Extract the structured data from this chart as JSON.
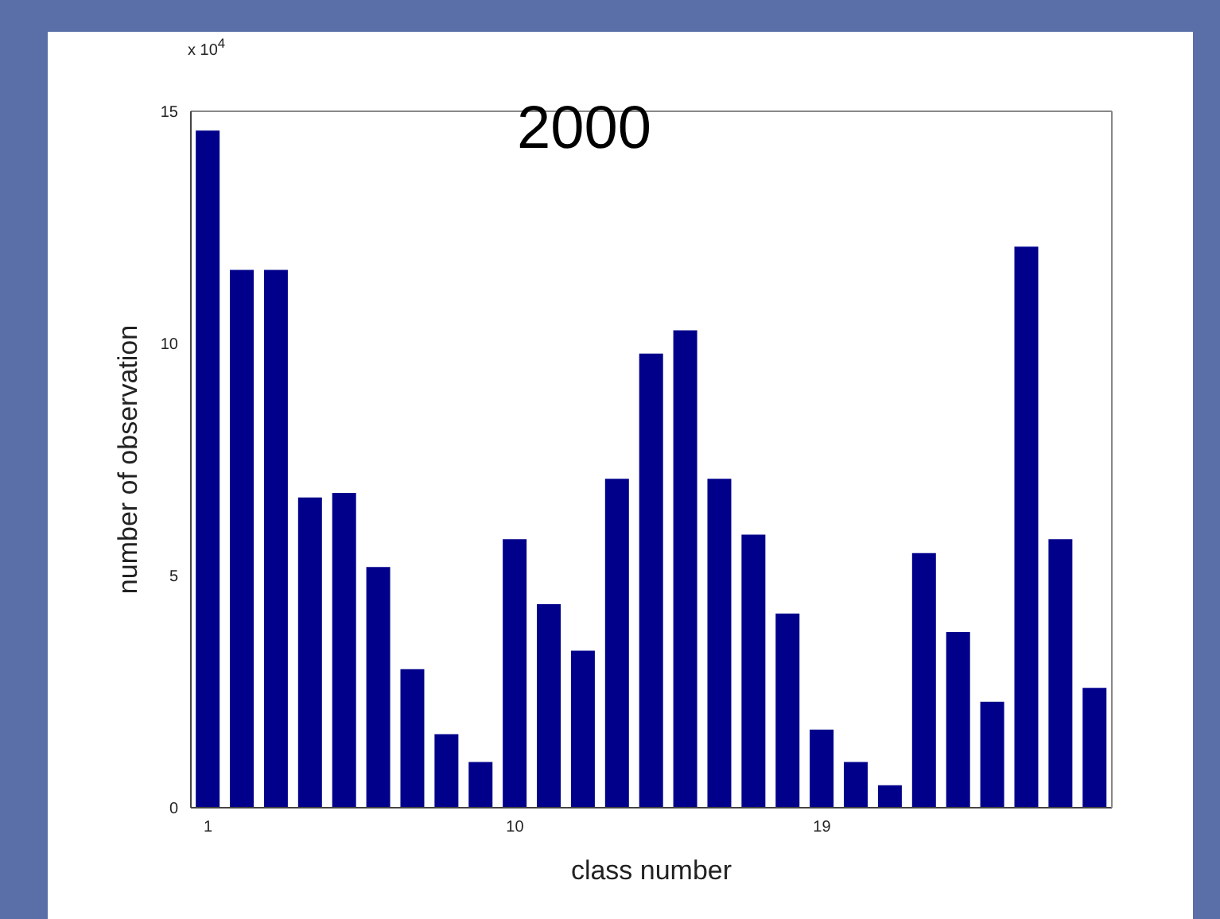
{
  "chart_data": {
    "type": "bar",
    "title": "2000",
    "xlabel": "class number",
    "ylabel": "number of observation",
    "annotations": [
      "x 10$^{4}$"
    ],
    "categories": [
      "1",
      null,
      null,
      null,
      null,
      null,
      null,
      null,
      null,
      "10",
      null,
      null,
      null,
      null,
      null,
      null,
      null,
      null,
      "19",
      null,
      null,
      null,
      null,
      null,
      null,
      null,
      null
    ],
    "values": [
      14.6,
      11.6,
      11.6,
      6.7,
      6.8,
      5.2,
      3.0,
      1.6,
      1.0,
      5.8,
      4.4,
      3.4,
      7.1,
      9.8,
      10.3,
      7.1,
      5.9,
      4.2,
      1.7,
      1.0,
      0.5,
      5.5,
      3.8,
      2.3,
      12.1,
      5.8,
      2.6
    ],
    "color": "#00008b",
    "ylim": [
      0,
      15
    ],
    "yticks": [
      0,
      5,
      10,
      15
    ]
  }
}
